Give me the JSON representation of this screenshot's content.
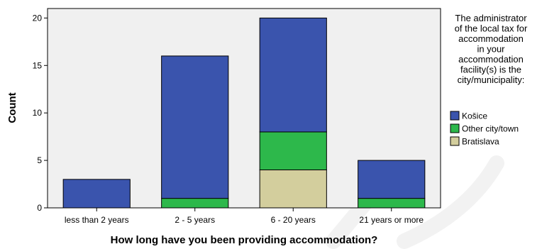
{
  "chart_data": {
    "type": "bar",
    "stacked": true,
    "categories": [
      "less than 2 years",
      "2 - 5 years",
      "6 - 20 years",
      "21 years or more"
    ],
    "series": [
      {
        "name": "Bratislava",
        "values": [
          0,
          0,
          4,
          0
        ],
        "color": "#d3ce9d"
      },
      {
        "name": "Other city/town",
        "values": [
          0,
          1,
          4,
          1
        ],
        "color": "#2db84b"
      },
      {
        "name": "Košice",
        "values": [
          3,
          15,
          12,
          4
        ],
        "color": "#3a54ad"
      }
    ],
    "legend_order": [
      "Košice",
      "Other city/town",
      "Bratislava"
    ],
    "legend_title": [
      "The administrator",
      "of the local tax for",
      "accommodation",
      "in your",
      "accommodation",
      "facility(s) is the",
      "city/municipality:"
    ],
    "xlabel": "How long have you been providing accommodation?",
    "ylabel": "Count",
    "ylim": [
      0,
      21
    ],
    "yticks": [
      0,
      5,
      10,
      15,
      20
    ],
    "plot_background": "#f0f0f0",
    "grid": false,
    "legend_position": "right"
  }
}
